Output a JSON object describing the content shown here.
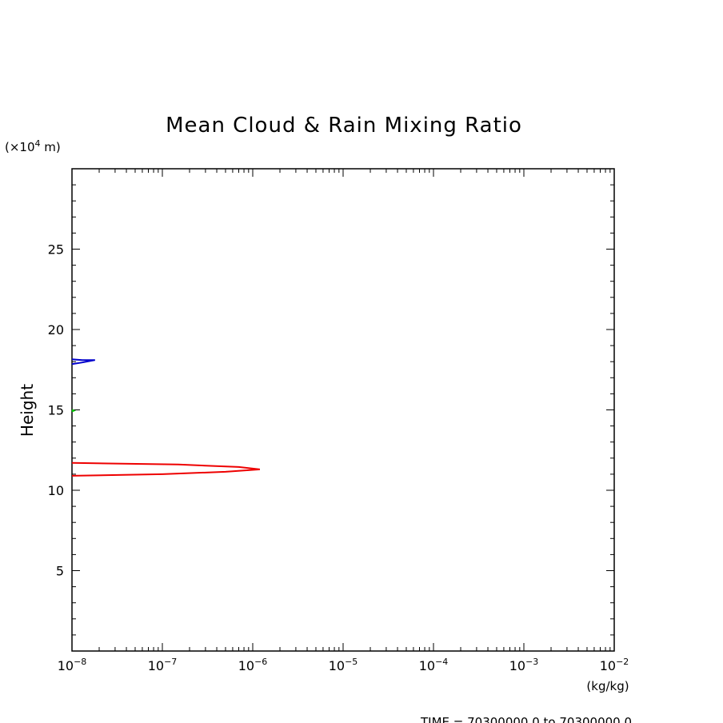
{
  "chart_data": {
    "type": "line",
    "title": "Mean Cloud & Rain Mixing Ratio",
    "ylabel": "Height",
    "yunit_prefix": "(×10",
    "yunit_exp": "4",
    "yunit_suffix": " m)",
    "xunit": "(kg/kg)",
    "x_scale": "log",
    "xlim": [
      1e-08,
      0.01
    ],
    "ylim": [
      0,
      30
    ],
    "x_ticks": [
      {
        "base": "10",
        "exp": "−8",
        "value": 1e-08
      },
      {
        "base": "10",
        "exp": "−7",
        "value": 1e-07
      },
      {
        "base": "10",
        "exp": "−6",
        "value": 1e-06
      },
      {
        "base": "10",
        "exp": "−5",
        "value": 1e-05
      },
      {
        "base": "10",
        "exp": "−4",
        "value": 0.0001
      },
      {
        "base": "10",
        "exp": "−3",
        "value": 0.001
      },
      {
        "base": "10",
        "exp": "−2",
        "value": 0.01
      }
    ],
    "y_ticks": [
      {
        "label": "5",
        "value": 5
      },
      {
        "label": "10",
        "value": 10
      },
      {
        "label": "15",
        "value": 15
      },
      {
        "label": "20",
        "value": 20
      },
      {
        "label": "25",
        "value": 25
      }
    ],
    "series": [
      {
        "color": "#ee0000",
        "points": [
          [
            1e-08,
            10.9
          ],
          [
            1e-07,
            11.0
          ],
          [
            5e-07,
            11.15
          ],
          [
            1.2e-06,
            11.3
          ],
          [
            7e-07,
            11.45
          ],
          [
            1.5e-07,
            11.6
          ],
          [
            1e-08,
            11.7
          ]
        ]
      },
      {
        "color": "#0000cc",
        "points": [
          [
            1e-08,
            17.85
          ],
          [
            1.3e-08,
            17.95
          ],
          [
            1.8e-08,
            18.1
          ],
          [
            1.3e-08,
            18.1
          ],
          [
            1e-08,
            18.15
          ]
        ]
      },
      {
        "color": "#00cc00",
        "points": [
          [
            1e-08,
            14.9
          ],
          [
            1.05e-08,
            14.95
          ],
          [
            1e-08,
            15.0
          ]
        ]
      }
    ],
    "grid": false,
    "legend": "none"
  },
  "footer": {
    "time_text": "TIME = 70300000.0 to 70300000.0"
  }
}
